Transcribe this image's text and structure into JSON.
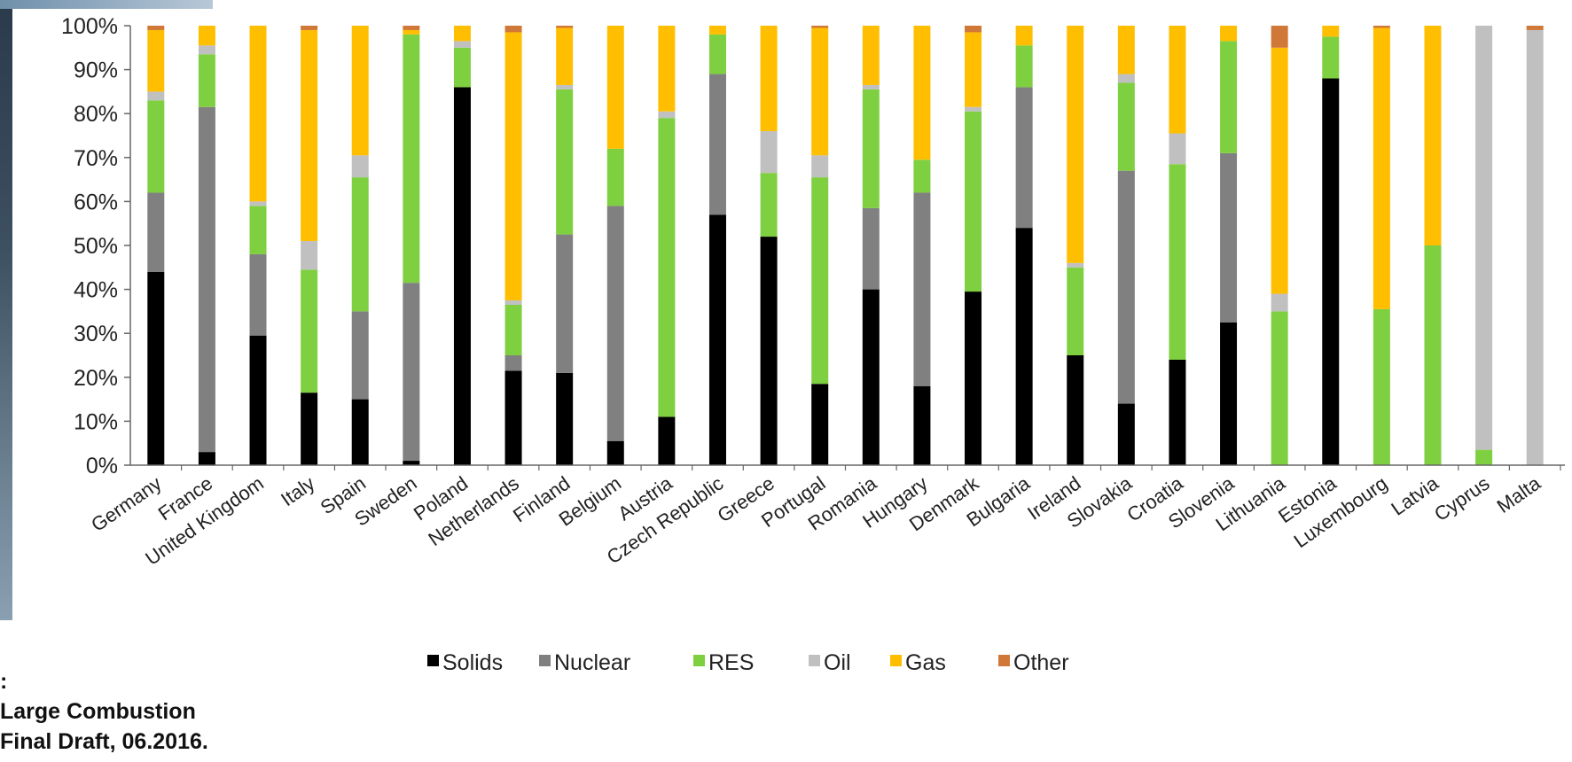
{
  "source_note": {
    "line1": ":",
    "line2": "Large Combustion",
    "line3": " Final Draft, 06.2016."
  },
  "colors": {
    "Solids": "#000000",
    "Nuclear": "#808080",
    "RES": "#7ed040",
    "Oil": "#c0c0c0",
    "Gas": "#ffbf00",
    "Other": "#d07838"
  },
  "chart_data": {
    "type": "bar",
    "stacked": true,
    "title": "",
    "xlabel": "",
    "ylabel": "",
    "ylim": [
      0,
      100
    ],
    "y_ticks": [
      "0%",
      "10%",
      "20%",
      "30%",
      "40%",
      "50%",
      "60%",
      "70%",
      "80%",
      "90%",
      "100%"
    ],
    "grid": false,
    "legend_position": "bottom",
    "categories": [
      "Germany",
      "France",
      "United Kingdom",
      "Italy",
      "Spain",
      "Sweden",
      "Poland",
      "Netherlands",
      "Finland",
      "Belgium",
      "Austria",
      "Czech Republic",
      "Greece",
      "Portugal",
      "Romania",
      "Hungary",
      "Denmark",
      "Bulgaria",
      "Ireland",
      "Slovakia",
      "Croatia",
      "Slovenia",
      "Lithuania",
      "Estonia",
      "Luxembourg",
      "Latvia",
      "Cyprus",
      "Malta"
    ],
    "series": [
      {
        "name": "Solids",
        "values": [
          44,
          3,
          29.5,
          16.5,
          15,
          1,
          86,
          21.5,
          21,
          5.5,
          11,
          57,
          52,
          18.5,
          40,
          18,
          39.5,
          54,
          25,
          14,
          24,
          32.5,
          0,
          88,
          0,
          0,
          0,
          0
        ]
      },
      {
        "name": "Nuclear",
        "values": [
          18,
          78.5,
          18.5,
          0,
          20,
          40.5,
          0,
          3.5,
          31.5,
          53.5,
          0,
          32,
          0,
          0,
          18.5,
          44,
          0,
          32,
          0,
          53,
          0,
          38.5,
          0,
          0,
          0,
          0,
          0,
          0
        ]
      },
      {
        "name": "RES",
        "values": [
          21,
          12,
          11,
          28,
          30.5,
          56.5,
          9,
          11.5,
          33,
          13,
          68,
          9,
          14.5,
          47,
          27,
          7.5,
          41,
          9.5,
          20,
          20,
          44.5,
          25.5,
          35,
          9.5,
          35.5,
          50,
          3.5,
          0
        ]
      },
      {
        "name": "Oil",
        "values": [
          2,
          2,
          1,
          6.5,
          5,
          0,
          1.5,
          1,
          1,
          0,
          1.5,
          0,
          9.5,
          5,
          1,
          0,
          1,
          0,
          1,
          2,
          7,
          0,
          4,
          0,
          0,
          0,
          96.5,
          99
        ]
      },
      {
        "name": "Gas",
        "values": [
          14,
          4.5,
          40,
          48,
          29.5,
          1,
          3.5,
          61,
          13,
          28,
          19.5,
          2,
          24,
          29,
          13.5,
          30.5,
          17,
          4.5,
          54,
          11,
          24.5,
          3.5,
          56,
          2.5,
          64,
          50,
          0,
          0
        ]
      },
      {
        "name": "Other",
        "values": [
          1,
          0,
          0,
          1,
          0,
          1,
          0,
          1.5,
          0.5,
          0,
          0,
          0,
          0,
          0.5,
          0,
          0,
          1.5,
          0,
          0,
          0,
          0,
          0,
          5,
          0,
          0.5,
          0,
          0,
          1
        ]
      }
    ]
  }
}
